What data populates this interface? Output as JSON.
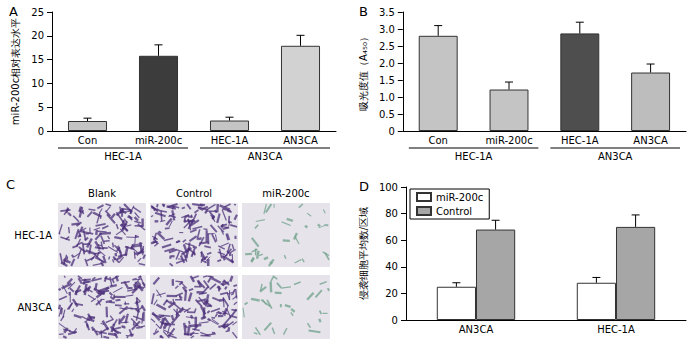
{
  "chart_data": [
    {
      "type": "bar",
      "title": "A",
      "y_label": "miR-200c相对表达水平",
      "categories": [
        "Con",
        "miR-200c",
        "HEC-1A",
        "AN3CA"
      ],
      "group_labels": [
        "HEC-1A",
        "HEC-1A",
        "AN3CA",
        "AN3CA"
      ],
      "values": [
        2.1,
        15.8,
        2.2,
        17.9
      ],
      "errors": [
        0.6,
        2.3,
        0.7,
        2.2
      ],
      "colors": [
        "#c4c4c4",
        "#3c3c3c",
        "#c4c4c4",
        "#d2d2d2"
      ],
      "ylim": [
        0,
        25
      ],
      "yticks": [
        0,
        5,
        10,
        15,
        20,
        25
      ],
      "grid": false
    },
    {
      "type": "bar",
      "title": "B",
      "y_label": "吸光度值（A₄₅₀）",
      "categories": [
        "Con",
        "miR-200c",
        "HEC-1A",
        "AN3CA"
      ],
      "group_labels": [
        "HEC-1A",
        "HEC-1A",
        "AN3CA",
        "AN3CA"
      ],
      "values": [
        2.8,
        1.22,
        2.87,
        1.72
      ],
      "errors": [
        0.3,
        0.22,
        0.33,
        0.25
      ],
      "colors": [
        "#c4c4c4",
        "#c4c4c4",
        "#4e4e4e",
        "#bdbdbd"
      ],
      "ylim": [
        0,
        3.5
      ],
      "yticks": [
        0,
        {
          "value": 0.5,
          "label": "0.5"
        },
        {
          "value": 1,
          "label": "1.0"
        },
        {
          "value": 1.5,
          "label": "1.5"
        },
        {
          "value": 2,
          "label": "2.0"
        },
        {
          "value": 2.5,
          "label": "2.5"
        },
        {
          "value": 3,
          "label": "3.0"
        },
        {
          "value": 3.5,
          "label": "3.5"
        }
      ],
      "grid": false
    },
    {
      "type": "bar",
      "title": "D",
      "y_label": "侵袭细胞平均数/区域",
      "categories": [
        "AN3CA",
        "HEC-1A"
      ],
      "series": [
        {
          "name": "miR-200c",
          "color": "#ffffff",
          "values": [
            25,
            28
          ],
          "errors": [
            3,
            4
          ]
        },
        {
          "name": "Control",
          "color": "#a6a6a6",
          "values": [
            68,
            70
          ],
          "errors": [
            7,
            9
          ]
        }
      ],
      "legend": "upper left",
      "ylim": [
        0,
        100
      ],
      "yticks": [
        0,
        20,
        40,
        60,
        80,
        100
      ],
      "grid": false
    }
  ],
  "panel_c": {
    "title": "C",
    "columns": [
      "Blank",
      "Control",
      "miR-200c"
    ],
    "rows": [
      "HEC-1A",
      "AN3CA"
    ]
  }
}
